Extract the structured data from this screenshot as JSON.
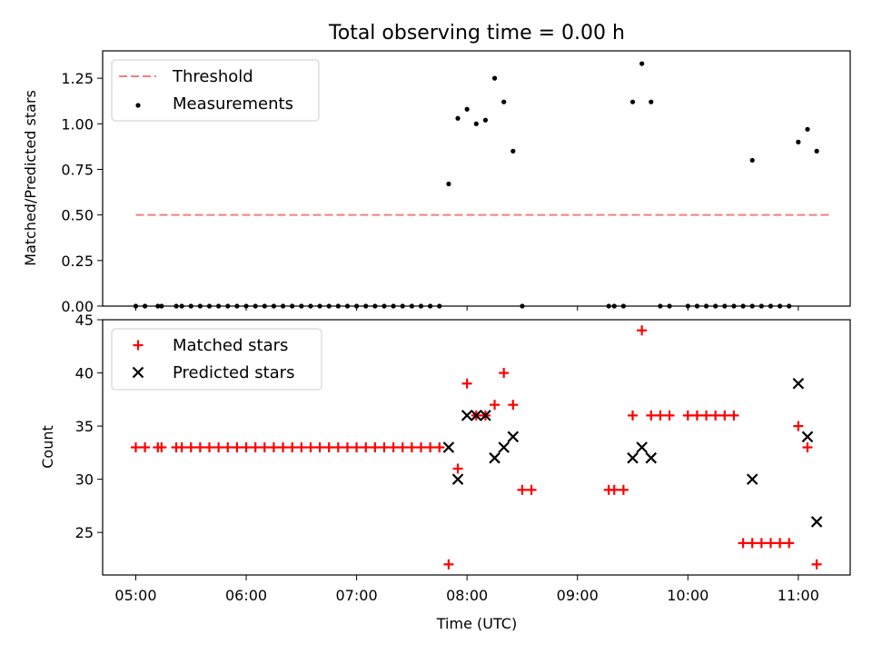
{
  "title": "Total observing time = 0.00 h",
  "chart_data": [
    {
      "type": "scatter",
      "ylabel": "Matched/Predicted stars",
      "ylim": [
        0,
        1.4
      ],
      "yticks": [
        0.0,
        0.25,
        0.5,
        0.75,
        1.0,
        1.25
      ],
      "yticklabels": [
        "0.00",
        "0.25",
        "0.50",
        "0.75",
        "1.00",
        "1.25"
      ],
      "xlim_hours": [
        4.7,
        11.47
      ],
      "legend": {
        "position": "upper-left",
        "entries": [
          "Threshold",
          "Measurements"
        ]
      },
      "threshold": {
        "name": "Threshold",
        "value": 0.5,
        "x_start": "05:00",
        "x_end": "11:17",
        "color": "#f08080",
        "style": "dashed"
      },
      "measurements": {
        "name": "Measurements",
        "color": "#000000",
        "points": [
          [
            "05:00",
            0
          ],
          [
            "05:05",
            0
          ],
          [
            "05:12",
            0
          ],
          [
            "05:14",
            0
          ],
          [
            "05:22",
            0
          ],
          [
            "05:25",
            0
          ],
          [
            "05:30",
            0
          ],
          [
            "05:35",
            0
          ],
          [
            "05:40",
            0
          ],
          [
            "05:45",
            0
          ],
          [
            "05:50",
            0
          ],
          [
            "05:55",
            0
          ],
          [
            "06:00",
            0
          ],
          [
            "06:05",
            0
          ],
          [
            "06:10",
            0
          ],
          [
            "06:15",
            0
          ],
          [
            "06:20",
            0
          ],
          [
            "06:25",
            0
          ],
          [
            "06:30",
            0
          ],
          [
            "06:35",
            0
          ],
          [
            "06:40",
            0
          ],
          [
            "06:45",
            0
          ],
          [
            "06:50",
            0
          ],
          [
            "06:55",
            0
          ],
          [
            "07:00",
            0
          ],
          [
            "07:05",
            0
          ],
          [
            "07:10",
            0
          ],
          [
            "07:15",
            0
          ],
          [
            "07:20",
            0
          ],
          [
            "07:25",
            0
          ],
          [
            "07:30",
            0
          ],
          [
            "07:35",
            0
          ],
          [
            "07:40",
            0
          ],
          [
            "07:45",
            0
          ],
          [
            "07:50",
            0.67
          ],
          [
            "07:55",
            1.03
          ],
          [
            "08:00",
            1.08
          ],
          [
            "08:05",
            1.0
          ],
          [
            "08:10",
            1.02
          ],
          [
            "08:15",
            1.25
          ],
          [
            "08:20",
            1.12
          ],
          [
            "08:25",
            0.85
          ],
          [
            "08:30",
            0
          ],
          [
            "09:17",
            0
          ],
          [
            "09:20",
            0
          ],
          [
            "09:25",
            0
          ],
          [
            "09:30",
            1.12
          ],
          [
            "09:35",
            1.33
          ],
          [
            "09:40",
            1.12
          ],
          [
            "09:45",
            0
          ],
          [
            "09:50",
            0
          ],
          [
            "10:00",
            0
          ],
          [
            "10:05",
            0
          ],
          [
            "10:10",
            0
          ],
          [
            "10:15",
            0
          ],
          [
            "10:20",
            0
          ],
          [
            "10:25",
            0
          ],
          [
            "10:30",
            0
          ],
          [
            "10:35",
            0.8
          ],
          [
            "10:35",
            0
          ],
          [
            "10:40",
            0
          ],
          [
            "10:45",
            0
          ],
          [
            "10:50",
            0
          ],
          [
            "10:55",
            0
          ],
          [
            "11:00",
            0.9
          ],
          [
            "11:05",
            0.97
          ],
          [
            "11:10",
            0.85
          ]
        ]
      }
    },
    {
      "type": "scatter",
      "xlabel": "Time (UTC)",
      "ylabel": "Count",
      "ylim": [
        21,
        45
      ],
      "yticks": [
        25,
        30,
        35,
        40,
        45
      ],
      "yticklabels": [
        "25",
        "30",
        "35",
        "40",
        "45"
      ],
      "xlim_hours": [
        4.7,
        11.47
      ],
      "xticks": [
        "05:00",
        "06:00",
        "07:00",
        "08:00",
        "09:00",
        "10:00",
        "11:00"
      ],
      "legend": {
        "position": "upper-left",
        "entries": [
          "Matched stars",
          "Predicted stars"
        ]
      },
      "series": [
        {
          "name": "Matched stars",
          "marker": "plus",
          "color": "#ff0000",
          "points": [
            [
              "05:00",
              33
            ],
            [
              "05:05",
              33
            ],
            [
              "05:12",
              33
            ],
            [
              "05:14",
              33
            ],
            [
              "05:22",
              33
            ],
            [
              "05:25",
              33
            ],
            [
              "05:30",
              33
            ],
            [
              "05:35",
              33
            ],
            [
              "05:40",
              33
            ],
            [
              "05:45",
              33
            ],
            [
              "05:50",
              33
            ],
            [
              "05:55",
              33
            ],
            [
              "06:00",
              33
            ],
            [
              "06:05",
              33
            ],
            [
              "06:10",
              33
            ],
            [
              "06:15",
              33
            ],
            [
              "06:20",
              33
            ],
            [
              "06:25",
              33
            ],
            [
              "06:30",
              33
            ],
            [
              "06:35",
              33
            ],
            [
              "06:40",
              33
            ],
            [
              "06:45",
              33
            ],
            [
              "06:50",
              33
            ],
            [
              "06:55",
              33
            ],
            [
              "07:00",
              33
            ],
            [
              "07:05",
              33
            ],
            [
              "07:10",
              33
            ],
            [
              "07:15",
              33
            ],
            [
              "07:20",
              33
            ],
            [
              "07:25",
              33
            ],
            [
              "07:30",
              33
            ],
            [
              "07:35",
              33
            ],
            [
              "07:40",
              33
            ],
            [
              "07:45",
              33
            ],
            [
              "07:50",
              22
            ],
            [
              "07:55",
              31
            ],
            [
              "08:00",
              39
            ],
            [
              "08:05",
              36
            ],
            [
              "08:10",
              36
            ],
            [
              "08:15",
              37
            ],
            [
              "08:20",
              40
            ],
            [
              "08:25",
              37
            ],
            [
              "08:30",
              29
            ],
            [
              "08:35",
              29
            ],
            [
              "09:17",
              29
            ],
            [
              "09:20",
              29
            ],
            [
              "09:25",
              29
            ],
            [
              "09:30",
              36
            ],
            [
              "09:35",
              44
            ],
            [
              "09:40",
              36
            ],
            [
              "09:45",
              36
            ],
            [
              "09:50",
              36
            ],
            [
              "10:00",
              36
            ],
            [
              "10:05",
              36
            ],
            [
              "10:10",
              36
            ],
            [
              "10:15",
              36
            ],
            [
              "10:20",
              36
            ],
            [
              "10:25",
              36
            ],
            [
              "10:30",
              24
            ],
            [
              "10:35",
              24
            ],
            [
              "10:40",
              24
            ],
            [
              "10:45",
              24
            ],
            [
              "10:50",
              24
            ],
            [
              "10:55",
              24
            ],
            [
              "11:00",
              35
            ],
            [
              "11:05",
              33
            ],
            [
              "11:10",
              22
            ]
          ]
        },
        {
          "name": "Predicted stars",
          "marker": "x",
          "color": "#000000",
          "points": [
            [
              "07:50",
              33
            ],
            [
              "07:55",
              30
            ],
            [
              "08:00",
              36
            ],
            [
              "08:05",
              36
            ],
            [
              "08:10",
              36
            ],
            [
              "08:15",
              32
            ],
            [
              "08:20",
              33
            ],
            [
              "08:25",
              34
            ],
            [
              "09:30",
              32
            ],
            [
              "09:35",
              33
            ],
            [
              "09:40",
              32
            ],
            [
              "10:35",
              30
            ],
            [
              "11:00",
              39
            ],
            [
              "11:05",
              34
            ],
            [
              "11:10",
              26
            ]
          ]
        }
      ]
    }
  ]
}
